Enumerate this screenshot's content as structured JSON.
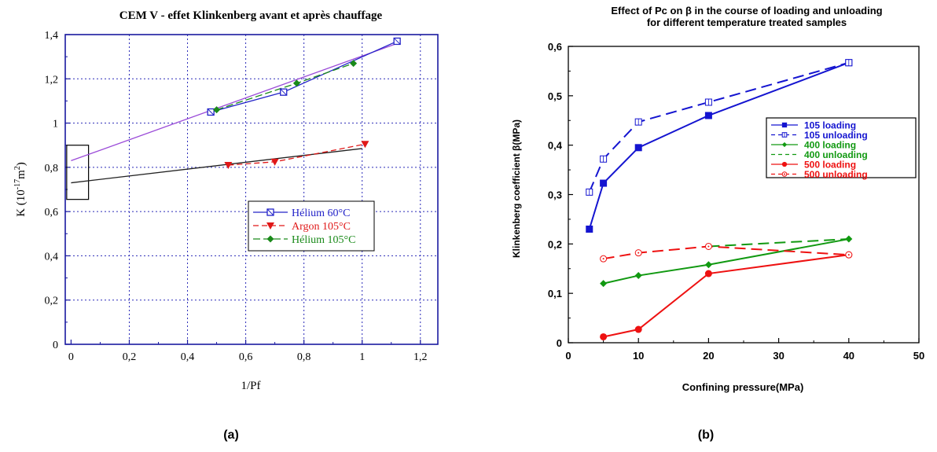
{
  "panels": {
    "a_label": "(a)",
    "b_label": "(b)"
  },
  "chart_data": [
    {
      "type": "scatter",
      "title": "CEM V - effet Klinkenberg avant et après chauffage",
      "xlabel": "1/Pf",
      "ylabel_parts": [
        "K (10",
        "-17",
        "m",
        "2",
        ")"
      ],
      "xlim": [
        -0.02,
        1.26
      ],
      "ylim": [
        0,
        1.4
      ],
      "xticks": [
        0,
        0.2,
        0.4,
        0.6,
        0.8,
        1,
        1.2
      ],
      "xtick_labels": [
        "0",
        "0,2",
        "0,4",
        "0,6",
        "0,8",
        "1",
        "1,2"
      ],
      "yticks": [
        0,
        0.2,
        0.4,
        0.6,
        0.8,
        1,
        1.2,
        1.4
      ],
      "ytick_labels": [
        "0",
        "0,2",
        "0,4",
        "0,6",
        "0,8",
        "1",
        "1,2",
        "1,4"
      ],
      "grid": true,
      "legend_position": "center-right",
      "series": [
        {
          "name": "Hélium 60°C",
          "color": "#2323c8",
          "marker": "square-x",
          "x": [
            0.48,
            0.73,
            1.12
          ],
          "y": [
            1.05,
            1.14,
            1.37
          ]
        },
        {
          "name": "Argon 105°C",
          "color": "#e01818",
          "marker": "triangle-down",
          "x": [
            0.54,
            0.7,
            1.01
          ],
          "y": [
            0.81,
            0.825,
            0.905
          ]
        },
        {
          "name": "Hélium 105°C",
          "color": "#1a8a1a",
          "marker": "diamond",
          "x": [
            0.5,
            0.775,
            0.97
          ],
          "y": [
            1.06,
            1.18,
            1.27
          ]
        }
      ],
      "fit_lines": [
        {
          "color": "#9a4ad8",
          "x": [
            0.0,
            1.12
          ],
          "y": [
            0.83,
            1.36
          ]
        },
        {
          "color": "#222222",
          "x": [
            0.0,
            1.0
          ],
          "y": [
            0.73,
            0.885
          ]
        }
      ],
      "annotation_box": {
        "x": [
          -0.015,
          0.06
        ],
        "y": [
          0.655,
          0.9
        ]
      }
    },
    {
      "type": "line",
      "title_lines": [
        "Effect of Pc on β in the course of loading and unloading",
        "for different temperature treated samples"
      ],
      "xlabel": "Confining pressure(MPa)",
      "ylabel": "Klinkenberg coefficient β(MPa)",
      "xlim": [
        0,
        50
      ],
      "ylim": [
        0,
        0.6
      ],
      "xticks": [
        0,
        10,
        20,
        30,
        40,
        50
      ],
      "xtick_labels": [
        "0",
        "10",
        "20",
        "30",
        "40",
        "50"
      ],
      "yticks": [
        0,
        0.1,
        0.2,
        0.3,
        0.4,
        0.5,
        0.6
      ],
      "ytick_labels": [
        "0",
        "0,1",
        "0,2",
        "0,3",
        "0,4",
        "0,5",
        "0,6"
      ],
      "grid": false,
      "legend_position": "right",
      "series": [
        {
          "name": "105 loading",
          "color": "#1414d0",
          "dash": false,
          "marker": "square-filled",
          "x": [
            3,
            5,
            10,
            20,
            40
          ],
          "y": [
            0.23,
            0.323,
            0.395,
            0.46,
            0.567
          ]
        },
        {
          "name": "105 unloading",
          "color": "#1414d0",
          "dash": true,
          "marker": "square-open",
          "x": [
            3,
            5,
            10,
            20,
            40
          ],
          "y": [
            0.305,
            0.372,
            0.447,
            0.487,
            0.567
          ]
        },
        {
          "name": "400 loading",
          "color": "#119911",
          "dash": false,
          "marker": "diamond-filled",
          "x": [
            5,
            10,
            20,
            40
          ],
          "y": [
            0.12,
            0.136,
            0.158,
            0.21
          ]
        },
        {
          "name": "400 unloading",
          "color": "#119911",
          "dash": true,
          "marker": "none",
          "x": [
            20,
            40
          ],
          "y": [
            0.195,
            0.21
          ]
        },
        {
          "name": "500 loading",
          "color": "#ee1111",
          "dash": false,
          "marker": "circle-filled",
          "x": [
            5,
            10,
            20,
            40
          ],
          "y": [
            0.012,
            0.027,
            0.14,
            0.178
          ]
        },
        {
          "name": "500 unloading",
          "color": "#ee1111",
          "dash": true,
          "marker": "circle-open",
          "x": [
            5,
            10,
            20,
            40
          ],
          "y": [
            0.17,
            0.182,
            0.195,
            0.178
          ]
        }
      ]
    }
  ]
}
